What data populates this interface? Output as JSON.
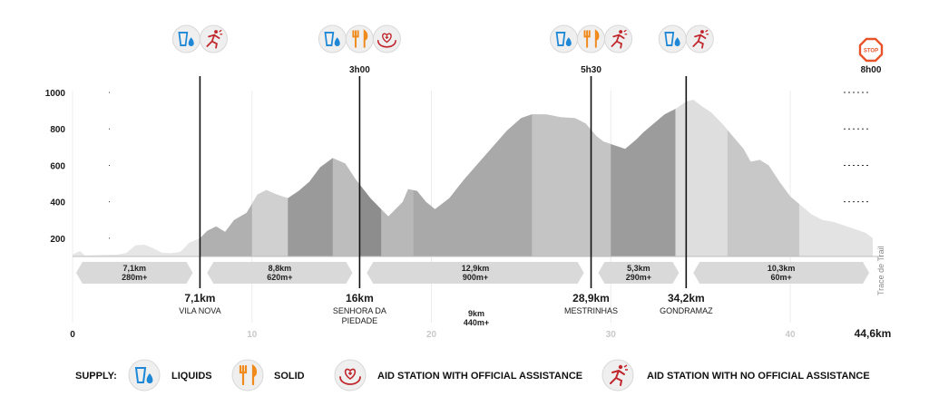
{
  "chart_data": {
    "type": "area",
    "xlim": [
      0,
      44.6
    ],
    "ylim": [
      100,
      1000
    ],
    "y_ticks": [
      "200",
      "400",
      "600",
      "800",
      "1000"
    ],
    "x_ticks": [
      "0",
      "10",
      "20",
      "30",
      "40"
    ],
    "x_end_label": "44,6km",
    "side_label": "Trace de Trail",
    "profile": [
      [
        0,
        110
      ],
      [
        0.4,
        130
      ],
      [
        0.7,
        105
      ],
      [
        1.5,
        108
      ],
      [
        2.5,
        110
      ],
      [
        3,
        120
      ],
      [
        3.5,
        160
      ],
      [
        4,
        165
      ],
      [
        4.6,
        140
      ],
      [
        5,
        120
      ],
      [
        5.5,
        118
      ],
      [
        6,
        125
      ],
      [
        6.5,
        175
      ],
      [
        7.1,
        200
      ],
      [
        7.5,
        240
      ],
      [
        8,
        265
      ],
      [
        8.5,
        235
      ],
      [
        9,
        300
      ],
      [
        9.7,
        340
      ],
      [
        10.3,
        440
      ],
      [
        10.8,
        465
      ],
      [
        11.4,
        440
      ],
      [
        12,
        420
      ],
      [
        12.6,
        460
      ],
      [
        13.2,
        510
      ],
      [
        13.8,
        590
      ],
      [
        14.5,
        640
      ],
      [
        15.2,
        610
      ],
      [
        15.8,
        520
      ],
      [
        16.6,
        420
      ],
      [
        17.2,
        360
      ],
      [
        17.6,
        320
      ],
      [
        18,
        360
      ],
      [
        18.4,
        400
      ],
      [
        18.7,
        470
      ],
      [
        19.2,
        460
      ],
      [
        19.7,
        400
      ],
      [
        20.2,
        360
      ],
      [
        21,
        420
      ],
      [
        21.8,
        520
      ],
      [
        22.6,
        610
      ],
      [
        23.4,
        700
      ],
      [
        24.2,
        790
      ],
      [
        25,
        860
      ],
      [
        25.6,
        880
      ],
      [
        26.4,
        880
      ],
      [
        27.2,
        865
      ],
      [
        28,
        860
      ],
      [
        28.6,
        830
      ],
      [
        29.2,
        760
      ],
      [
        29.6,
        730
      ],
      [
        30.2,
        710
      ],
      [
        30.8,
        690
      ],
      [
        31.4,
        740
      ],
      [
        31.8,
        780
      ],
      [
        32.4,
        830
      ],
      [
        33,
        880
      ],
      [
        33.6,
        910
      ],
      [
        34.2,
        950
      ],
      [
        34.6,
        960
      ],
      [
        35,
        930
      ],
      [
        35.6,
        890
      ],
      [
        36.2,
        830
      ],
      [
        36.8,
        760
      ],
      [
        37.4,
        690
      ],
      [
        37.8,
        620
      ],
      [
        38.3,
        630
      ],
      [
        38.8,
        600
      ],
      [
        39.4,
        510
      ],
      [
        40,
        430
      ],
      [
        40.6,
        380
      ],
      [
        41.2,
        330
      ],
      [
        41.8,
        300
      ],
      [
        42.4,
        290
      ],
      [
        43,
        270
      ],
      [
        43.6,
        250
      ],
      [
        44.2,
        230
      ],
      [
        44.6,
        200
      ]
    ],
    "shade_bands": [
      {
        "from": 0,
        "to": 7.1,
        "shade": "#e6e6e6"
      },
      {
        "from": 7.1,
        "to": 10,
        "shade": "#b0b0b0"
      },
      {
        "from": 10,
        "to": 12,
        "shade": "#d0d0d0"
      },
      {
        "from": 12,
        "to": 14.5,
        "shade": "#9a9a9a"
      },
      {
        "from": 14.5,
        "to": 16,
        "shade": "#bdbdbd"
      },
      {
        "from": 16,
        "to": 17.2,
        "shade": "#8d8d8d"
      },
      {
        "from": 17.2,
        "to": 19,
        "shade": "#b8b8b8"
      },
      {
        "from": 19,
        "to": 25.6,
        "shade": "#a9a9a9"
      },
      {
        "from": 25.6,
        "to": 30,
        "shade": "#c4c4c4"
      },
      {
        "from": 30,
        "to": 33.6,
        "shade": "#9c9c9c"
      },
      {
        "from": 33.6,
        "to": 36.5,
        "shade": "#dedede"
      },
      {
        "from": 36.5,
        "to": 40.5,
        "shade": "#c8c8c8"
      },
      {
        "from": 40.5,
        "to": 44.6,
        "shade": "#e3e3e3"
      }
    ],
    "checkpoints": [
      {
        "km": 7.1,
        "label": "7,1km",
        "name": "VILA NOVA",
        "name2": "",
        "time": "",
        "icons": [
          "liquids",
          "no-assist"
        ]
      },
      {
        "km": 16,
        "label": "16km",
        "name": "SENHORA DA",
        "name2": "PIEDADE",
        "time": "3h00",
        "icons": [
          "liquids",
          "solid",
          "assist"
        ]
      },
      {
        "km": 28.9,
        "label": "28,9km",
        "name": "MESTRINHAS",
        "name2": "",
        "time": "5h30",
        "icons": [
          "liquids",
          "solid",
          "no-assist"
        ]
      },
      {
        "km": 34.2,
        "label": "34,2km",
        "name": "GONDRAMAZ",
        "name2": "",
        "time": "",
        "icons": [
          "liquids",
          "no-assist"
        ]
      }
    ],
    "finish": {
      "time": "8h00",
      "sign": "STOP"
    },
    "segments": [
      {
        "from": 0.2,
        "to": 6.7,
        "dist": "7,1km",
        "gain": "280m+"
      },
      {
        "from": 7.5,
        "to": 15.6,
        "dist": "8,8km",
        "gain": "620m+"
      },
      {
        "from": 16.4,
        "to": 28.5,
        "dist": "12,9km",
        "gain": "900m+"
      },
      {
        "from": 29.3,
        "to": 33.8,
        "dist": "5,3km",
        "gain": "290m+"
      },
      {
        "from": 34.6,
        "to": 44.4,
        "dist": "10,3km",
        "gain": "60m+"
      }
    ],
    "extra_note": {
      "km": 22.5,
      "dist": "9km",
      "gain": "440m+"
    }
  },
  "legend": {
    "title": "SUPPLY:",
    "items": [
      {
        "icon": "liquids",
        "label": "LIQUIDS"
      },
      {
        "icon": "solid",
        "label": "SOLID"
      },
      {
        "icon": "assist",
        "label": "AID STATION WITH OFFICIAL ASSISTANCE"
      },
      {
        "icon": "no-assist",
        "label": "AID STATION WITH NO OFFICIAL ASSISTANCE"
      }
    ]
  },
  "colors": {
    "water": "#1e88d6",
    "solid": "#f08a1c",
    "aid": "#c0272d",
    "stop": "#e8542a",
    "segment_band": "#d9d9d9"
  }
}
